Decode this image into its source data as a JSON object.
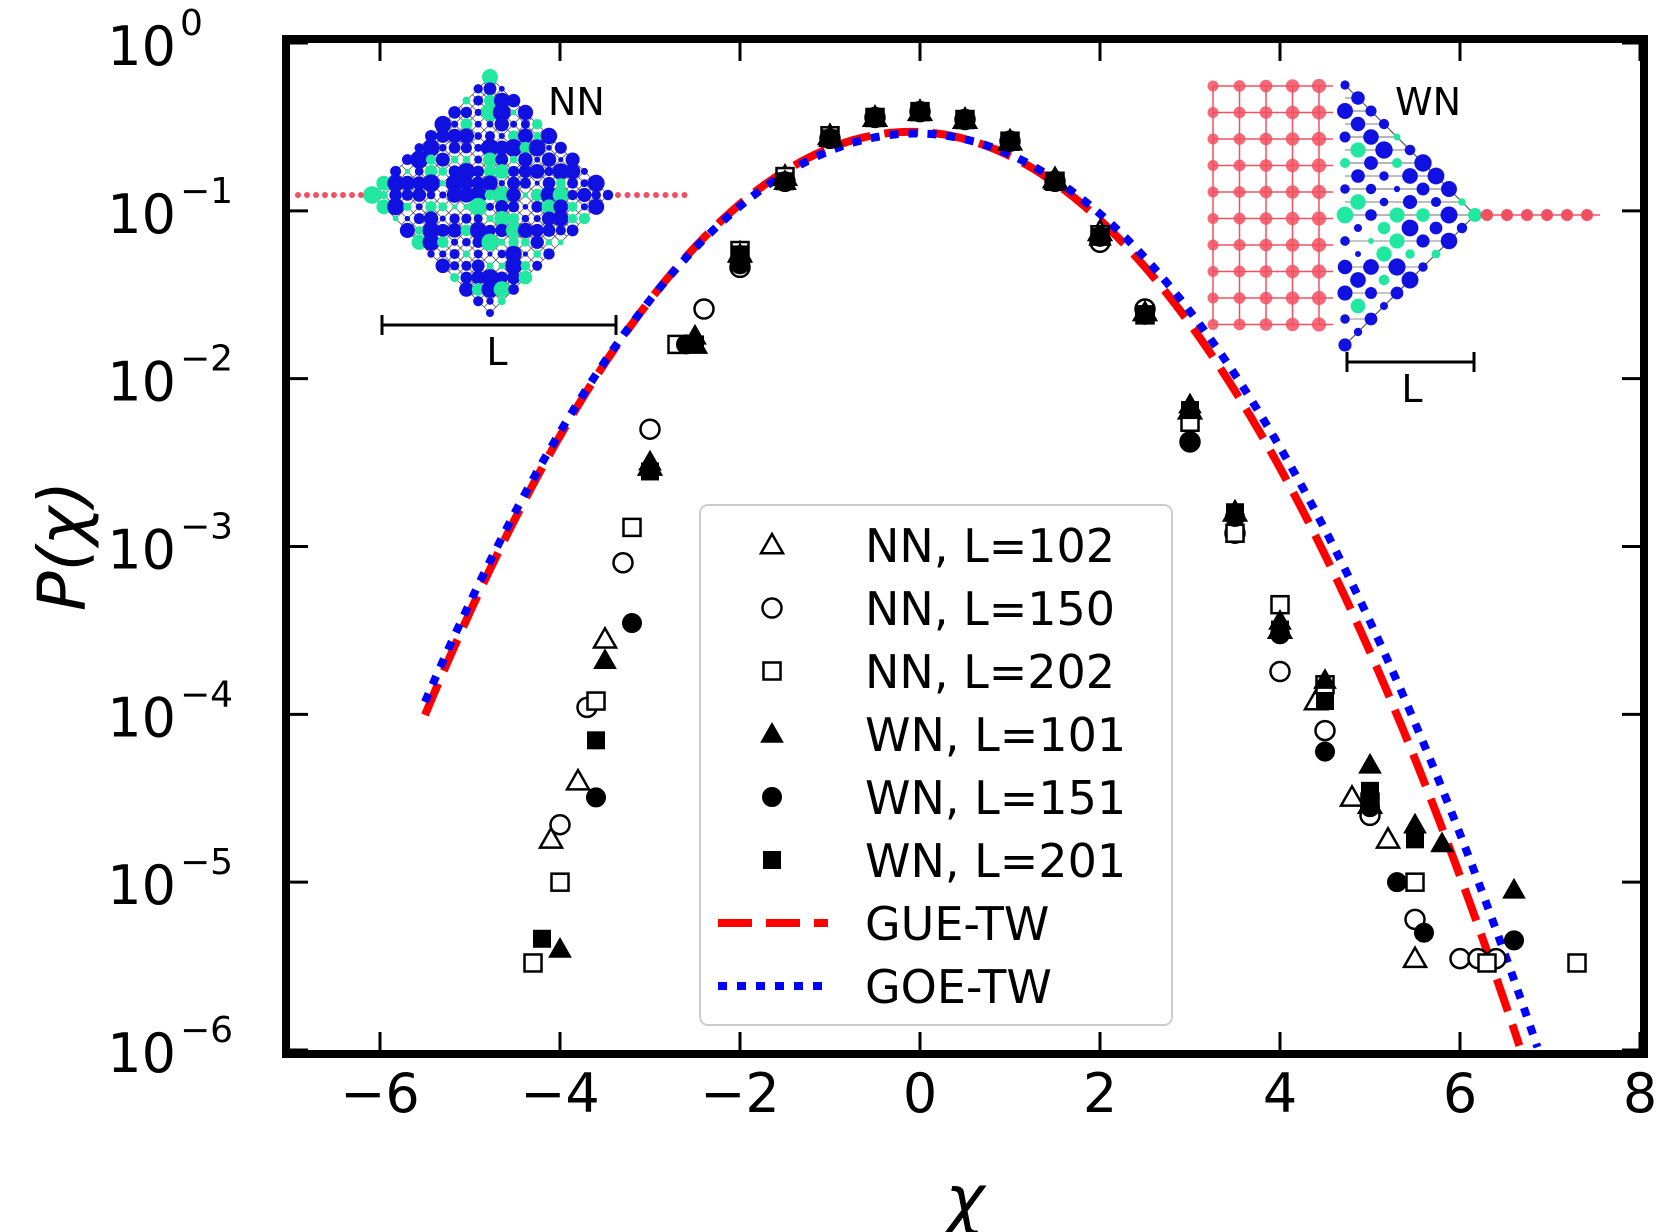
{
  "chart_data": {
    "type": "scatter",
    "title": "",
    "xlabel": "χ",
    "ylabel": "P(χ)",
    "xlim": [
      -7,
      8
    ],
    "ylim_log10": [
      -6,
      0
    ],
    "yscale": "log",
    "x_ticks": [
      -6,
      -4,
      -2,
      0,
      2,
      4,
      6,
      8
    ],
    "x_tick_labels": [
      "−6",
      "−4",
      "−2",
      "0",
      "2",
      "4",
      "6",
      "8"
    ],
    "y_ticks_log10": [
      0,
      -1,
      -2,
      -3,
      -4,
      -5,
      -6
    ],
    "y_tick_base": "10",
    "y_tick_exponents": [
      "0",
      "−1",
      "−2",
      "−3",
      "−4",
      "−5",
      "−6"
    ],
    "grid": false,
    "legend_position": "bottom-center",
    "series": [
      {
        "name": "NN, L=102",
        "marker": "triangle-open",
        "x": [
          -4.1,
          -3.8,
          -3.5,
          -3.0,
          -2.5,
          -2.0,
          -1.5,
          -1.0,
          -0.5,
          0.0,
          0.5,
          1.0,
          1.5,
          2.0,
          2.5,
          3.0,
          3.5,
          4.0,
          4.4,
          4.8,
          5.0,
          5.2,
          5.5
        ],
        "y": [
          1.8e-05,
          4e-05,
          0.00028,
          0.003,
          0.016,
          0.056,
          0.16,
          0.28,
          0.36,
          0.39,
          0.35,
          0.26,
          0.155,
          0.075,
          0.025,
          0.0065,
          0.0016,
          0.00032,
          0.00012,
          3.2e-05,
          2.9e-05,
          1.8e-05,
          3.5e-06
        ]
      },
      {
        "name": "NN, L=150",
        "marker": "circle-open",
        "x": [
          -4.0,
          -3.7,
          -3.3,
          -3.0,
          -2.4,
          -2.0,
          -1.5,
          -1.0,
          -0.5,
          0.0,
          0.5,
          1.0,
          1.5,
          2.0,
          2.5,
          3.0,
          3.5,
          4.0,
          4.5,
          5.0,
          5.5,
          6.0,
          6.2,
          6.4
        ],
        "y": [
          2.2e-05,
          0.00011,
          0.0008,
          0.005,
          0.026,
          0.046,
          0.15,
          0.27,
          0.36,
          0.39,
          0.35,
          0.26,
          0.15,
          0.065,
          0.026,
          0.0042,
          0.0012,
          0.00018,
          8e-05,
          2.5e-05,
          6e-06,
          3.5e-06,
          3.5e-06,
          3.5e-06
        ]
      },
      {
        "name": "NN, L=202",
        "marker": "square-open",
        "x": [
          -4.3,
          -4.0,
          -3.6,
          -3.2,
          -2.7,
          -2.0,
          -1.5,
          -1.0,
          -0.5,
          0.0,
          0.5,
          1.0,
          1.5,
          2.0,
          2.5,
          3.0,
          3.5,
          4.0,
          4.5,
          5.0,
          5.5,
          6.3,
          7.3
        ],
        "y": [
          3.3e-06,
          1e-05,
          0.00012,
          0.0013,
          0.016,
          0.058,
          0.16,
          0.28,
          0.36,
          0.39,
          0.35,
          0.26,
          0.15,
          0.072,
          0.024,
          0.0055,
          0.0012,
          0.00045,
          0.00015,
          3e-05,
          1e-05,
          3.3e-06,
          3.3e-06
        ]
      },
      {
        "name": "WN, L=101",
        "marker": "triangle-filled",
        "x": [
          -4.0,
          -3.5,
          -3.0,
          -2.5,
          -2.0,
          -1.5,
          -1.0,
          -0.5,
          0.0,
          0.5,
          1.0,
          1.5,
          2.0,
          2.5,
          3.0,
          3.5,
          4.0,
          4.5,
          5.0,
          5.5,
          5.8,
          6.6
        ],
        "y": [
          4e-06,
          0.00021,
          0.0032,
          0.018,
          0.055,
          0.15,
          0.27,
          0.36,
          0.39,
          0.35,
          0.26,
          0.15,
          0.07,
          0.025,
          0.007,
          0.0016,
          0.00036,
          0.00016,
          5e-05,
          2.2e-05,
          1.7e-05,
          9e-06
        ]
      },
      {
        "name": "WN, L=151",
        "marker": "circle-filled",
        "x": [
          -3.6,
          -3.2,
          -2.6,
          -2.0,
          -1.5,
          -1.0,
          -0.5,
          0.0,
          0.5,
          1.0,
          1.5,
          2.0,
          2.5,
          3.0,
          3.5,
          4.0,
          4.5,
          5.0,
          5.3,
          5.6,
          6.6
        ],
        "y": [
          3.2e-05,
          0.00035,
          0.016,
          0.048,
          0.15,
          0.27,
          0.36,
          0.39,
          0.35,
          0.26,
          0.15,
          0.07,
          0.024,
          0.0042,
          0.0015,
          0.0003,
          6e-05,
          2.8e-05,
          1e-05,
          5e-06,
          4.5e-06
        ]
      },
      {
        "name": "WN, L=201",
        "marker": "square-filled",
        "x": [
          -4.2,
          -3.6,
          -3.0,
          -2.5,
          -2.0,
          -1.5,
          -1.0,
          -0.5,
          0.0,
          0.5,
          1.0,
          1.5,
          2.0,
          2.5,
          3.0,
          3.5,
          4.0,
          4.5,
          5.0,
          5.5
        ],
        "y": [
          4.6e-06,
          7e-05,
          0.0028,
          0.016,
          0.055,
          0.15,
          0.27,
          0.36,
          0.39,
          0.35,
          0.26,
          0.15,
          0.07,
          0.024,
          0.0065,
          0.0016,
          0.00032,
          0.00012,
          3.5e-05,
          1.8e-05
        ]
      },
      {
        "name": "GUE-TW",
        "line": "dashed",
        "color": "#ff0000",
        "mean": -0.1,
        "std": 1.35
      },
      {
        "name": "GOE-TW",
        "line": "dotted",
        "color": "#0000ff",
        "mean": -0.05,
        "std": 1.38
      }
    ],
    "annotations": {
      "inset_left_label": "NN",
      "inset_right_label": "WN",
      "scale_bar_label": "L"
    }
  },
  "colors": {
    "gue": "#ff0000",
    "goe": "#0000ff",
    "inset_blue": "#1010e0",
    "inset_green": "#20e8a0",
    "inset_red": "#f25060"
  }
}
